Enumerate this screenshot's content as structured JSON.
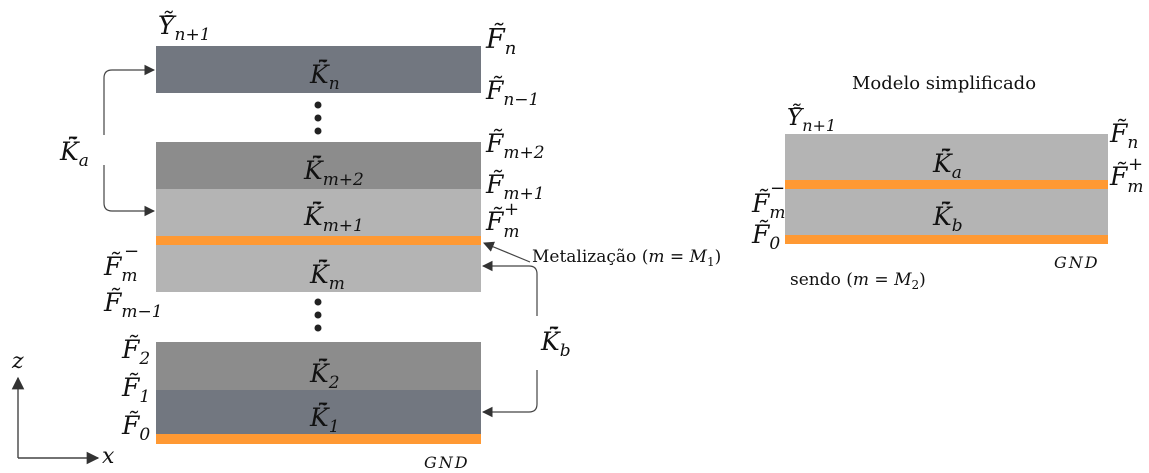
{
  "colors": {
    "dark_layer": "#727780",
    "medium_layer": "#8c8c8c",
    "light_layer": "#b4b4b4",
    "metal": "#ff9933",
    "ink": "#111111",
    "arrow": "#444444"
  },
  "left_stack": {
    "top_admittance": "Ỹ̄",
    "top_admittance_sub": "n+1",
    "layers": {
      "kn": {
        "base": "K̃̄",
        "sub": "n"
      },
      "km2": {
        "base": "K̃̄",
        "sub": "m+2"
      },
      "km1": {
        "base": "K̃̄",
        "sub": "m+1"
      },
      "km": {
        "base": "K̃̄",
        "sub": "m"
      },
      "k2": {
        "base": "K̃̄",
        "sub": "2"
      },
      "k1": {
        "base": "K̃̄",
        "sub": "1"
      }
    },
    "right_labels": {
      "fn": {
        "base": "F̃",
        "sub": "n"
      },
      "fn1": {
        "base": "F̃",
        "sub": "n−1"
      },
      "fm2": {
        "base": "F̃",
        "sub": "m+2"
      },
      "fm1": {
        "base": "F̃",
        "sub": "m+1"
      },
      "fmplus": {
        "base": "F̃",
        "sub": "m",
        "sup": "+"
      }
    },
    "left_labels": {
      "fmminus": {
        "base": "F̃",
        "sub": "m",
        "sup": "−"
      },
      "fmm1": {
        "base": "F̃",
        "sub": "m−1"
      },
      "f2": {
        "base": "F̃",
        "sub": "2"
      },
      "f1": {
        "base": "F̃",
        "sub": "1"
      },
      "f0": {
        "base": "F̃",
        "sub": "0"
      }
    },
    "ka_label": {
      "base": "K̃̄",
      "sub": "a"
    },
    "kb_label": {
      "base": "K̃̄",
      "sub": "b"
    },
    "metal_label": {
      "text": "Metalização (",
      "var": "m",
      "eq": " = ",
      "M": "M",
      "sub": "1",
      "close": ")"
    },
    "gnd": "GND"
  },
  "axes": {
    "z": "z",
    "x": "x"
  },
  "right_model": {
    "title": "Modelo simplificado",
    "top_admittance": "Ỹ̄",
    "top_admittance_sub": "n+1",
    "layers": {
      "ka": {
        "base": "K̃̄",
        "sub": "a"
      },
      "kb": {
        "base": "K̃̄",
        "sub": "b"
      }
    },
    "labels": {
      "fn": {
        "base": "F̃",
        "sub": "n"
      },
      "fmplus": {
        "base": "F̃",
        "sub": "m",
        "sup": "+"
      },
      "fmminus": {
        "base": "F̃",
        "sub": "m",
        "sup": "−"
      },
      "f0": {
        "base": "F̃",
        "sub": "0"
      }
    },
    "note": {
      "text": "sendo (",
      "var": "m",
      "eq": " = ",
      "M": "M",
      "sub": "2",
      "close": ")"
    },
    "gnd": "GND"
  }
}
